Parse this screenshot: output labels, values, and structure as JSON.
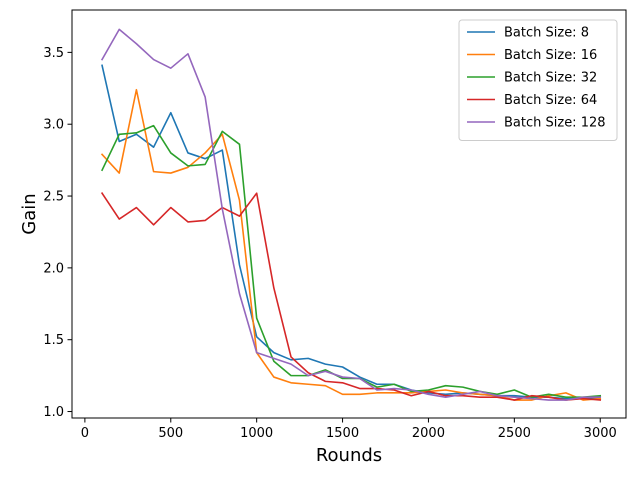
{
  "chart_data": {
    "type": "line",
    "xlabel": "Rounds",
    "ylabel": "Gain",
    "xlim": [
      -75,
      3150
    ],
    "ylim": [
      0.955,
      3.795
    ],
    "xticks": [
      0,
      500,
      1000,
      1500,
      2000,
      2500,
      3000
    ],
    "yticks": [
      1.0,
      1.5,
      2.0,
      2.5,
      3.0,
      3.5
    ],
    "xtick_labels": [
      "0",
      "500",
      "1000",
      "1500",
      "2000",
      "2500",
      "3000"
    ],
    "ytick_labels": [
      "1.0",
      "1.5",
      "2.0",
      "2.5",
      "3.0",
      "3.5"
    ],
    "grid": false,
    "legend_position": "top-right",
    "x": [
      100,
      200,
      300,
      400,
      500,
      600,
      700,
      800,
      900,
      1000,
      1100,
      1200,
      1300,
      1400,
      1500,
      1600,
      1700,
      1800,
      1900,
      2000,
      2100,
      2200,
      2300,
      2400,
      2500,
      2600,
      2700,
      2800,
      2900,
      3000
    ],
    "series": [
      {
        "name": "Batch Size: 8",
        "color": "#1f77b4",
        "values": [
          3.41,
          2.88,
          2.93,
          2.84,
          3.08,
          2.8,
          2.76,
          2.82,
          2.02,
          1.52,
          1.41,
          1.36,
          1.37,
          1.33,
          1.31,
          1.24,
          1.19,
          1.19,
          1.15,
          1.13,
          1.12,
          1.13,
          1.12,
          1.11,
          1.11,
          1.1,
          1.1,
          1.09,
          1.09,
          1.09
        ]
      },
      {
        "name": "Batch Size: 16",
        "color": "#ff7f0e",
        "values": [
          2.79,
          2.66,
          3.24,
          2.67,
          2.66,
          2.7,
          2.8,
          2.93,
          2.47,
          1.41,
          1.24,
          1.2,
          1.19,
          1.18,
          1.12,
          1.12,
          1.13,
          1.13,
          1.13,
          1.14,
          1.15,
          1.13,
          1.12,
          1.11,
          1.08,
          1.08,
          1.11,
          1.13,
          1.08,
          1.09
        ]
      },
      {
        "name": "Batch Size: 32",
        "color": "#2ca02c",
        "values": [
          2.68,
          2.93,
          2.94,
          2.99,
          2.8,
          2.71,
          2.72,
          2.95,
          2.86,
          1.65,
          1.35,
          1.25,
          1.25,
          1.29,
          1.23,
          1.23,
          1.17,
          1.19,
          1.14,
          1.15,
          1.18,
          1.17,
          1.14,
          1.12,
          1.15,
          1.1,
          1.12,
          1.1,
          1.1,
          1.11
        ]
      },
      {
        "name": "Batch Size: 64",
        "color": "#d62728",
        "values": [
          2.52,
          2.34,
          2.42,
          2.3,
          2.42,
          2.32,
          2.33,
          2.42,
          2.36,
          2.52,
          1.86,
          1.38,
          1.27,
          1.21,
          1.2,
          1.16,
          1.16,
          1.15,
          1.11,
          1.14,
          1.11,
          1.11,
          1.1,
          1.1,
          1.08,
          1.11,
          1.1,
          1.08,
          1.09,
          1.08
        ]
      },
      {
        "name": "Batch Size: 128",
        "color": "#9467bd",
        "values": [
          3.45,
          3.66,
          3.56,
          3.45,
          3.39,
          3.49,
          3.19,
          2.41,
          1.82,
          1.41,
          1.37,
          1.33,
          1.25,
          1.28,
          1.24,
          1.23,
          1.15,
          1.16,
          1.15,
          1.12,
          1.1,
          1.12,
          1.14,
          1.11,
          1.1,
          1.09,
          1.08,
          1.08,
          1.1,
          1.1
        ]
      }
    ]
  }
}
